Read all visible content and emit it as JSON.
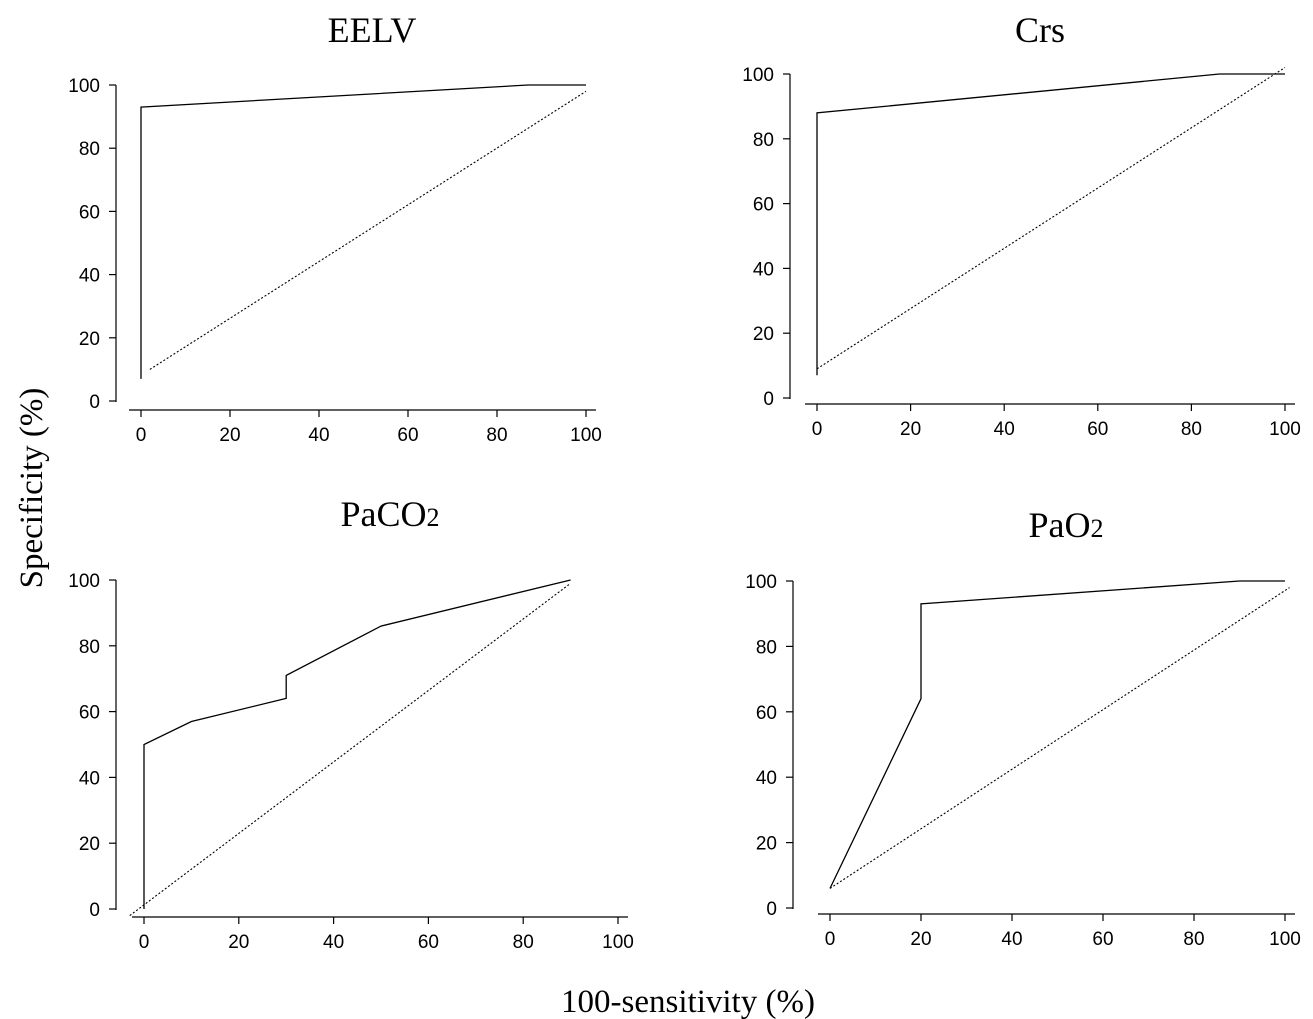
{
  "figure": {
    "ylabel": "Specificity (%)",
    "xlabel": "100-sensitivity (%)"
  },
  "chart_data": [
    {
      "type": "line",
      "title": "EELV",
      "title_sub": "",
      "xlim": [
        0,
        100
      ],
      "ylim": [
        0,
        100
      ],
      "xticks": [
        "0",
        "20",
        "40",
        "60",
        "80",
        "100"
      ],
      "yticks": [
        "0",
        "20",
        "40",
        "60",
        "80",
        "100"
      ],
      "series": [
        {
          "x": [
            0,
            0,
            87,
            100
          ],
          "y": [
            7,
            93,
            100,
            100
          ]
        }
      ],
      "reference": {
        "x": [
          2,
          100
        ],
        "y": [
          10,
          98
        ]
      }
    },
    {
      "type": "line",
      "title": "Crs",
      "title_sub": "",
      "xlim": [
        0,
        100
      ],
      "ylim": [
        0,
        100
      ],
      "xticks": [
        "0",
        "20",
        "40",
        "60",
        "80",
        "100"
      ],
      "yticks": [
        "0",
        "20",
        "40",
        "60",
        "80",
        "100"
      ],
      "series": [
        {
          "x": [
            0,
            0,
            86,
            100
          ],
          "y": [
            7,
            88,
            100,
            100
          ]
        }
      ],
      "reference": {
        "x": [
          0,
          100
        ],
        "y": [
          9,
          102
        ]
      }
    },
    {
      "type": "line",
      "title": "PaCO",
      "title_sub": "2",
      "xlim": [
        0,
        100
      ],
      "ylim": [
        0,
        100
      ],
      "xticks": [
        "0",
        "20",
        "40",
        "60",
        "80",
        "100"
      ],
      "yticks": [
        "0",
        "20",
        "40",
        "60",
        "80",
        "100"
      ],
      "series": [
        {
          "x": [
            0,
            0,
            10,
            30,
            30,
            50,
            90
          ],
          "y": [
            0,
            50,
            57,
            64,
            71,
            86,
            100
          ]
        }
      ],
      "reference": {
        "x": [
          -3,
          90
        ],
        "y": [
          -2,
          99
        ]
      }
    },
    {
      "type": "line",
      "title": "PaO",
      "title_sub": "2",
      "xlim": [
        0,
        100
      ],
      "ylim": [
        0,
        100
      ],
      "xticks": [
        "0",
        "20",
        "40",
        "60",
        "80",
        "100"
      ],
      "yticks": [
        "0",
        "20",
        "40",
        "60",
        "80",
        "100"
      ],
      "series": [
        {
          "x": [
            0,
            20,
            20,
            90,
            100
          ],
          "y": [
            6,
            64,
            93,
            100,
            100
          ]
        }
      ],
      "reference": {
        "x": [
          0,
          101
        ],
        "y": [
          6,
          98
        ]
      }
    }
  ]
}
